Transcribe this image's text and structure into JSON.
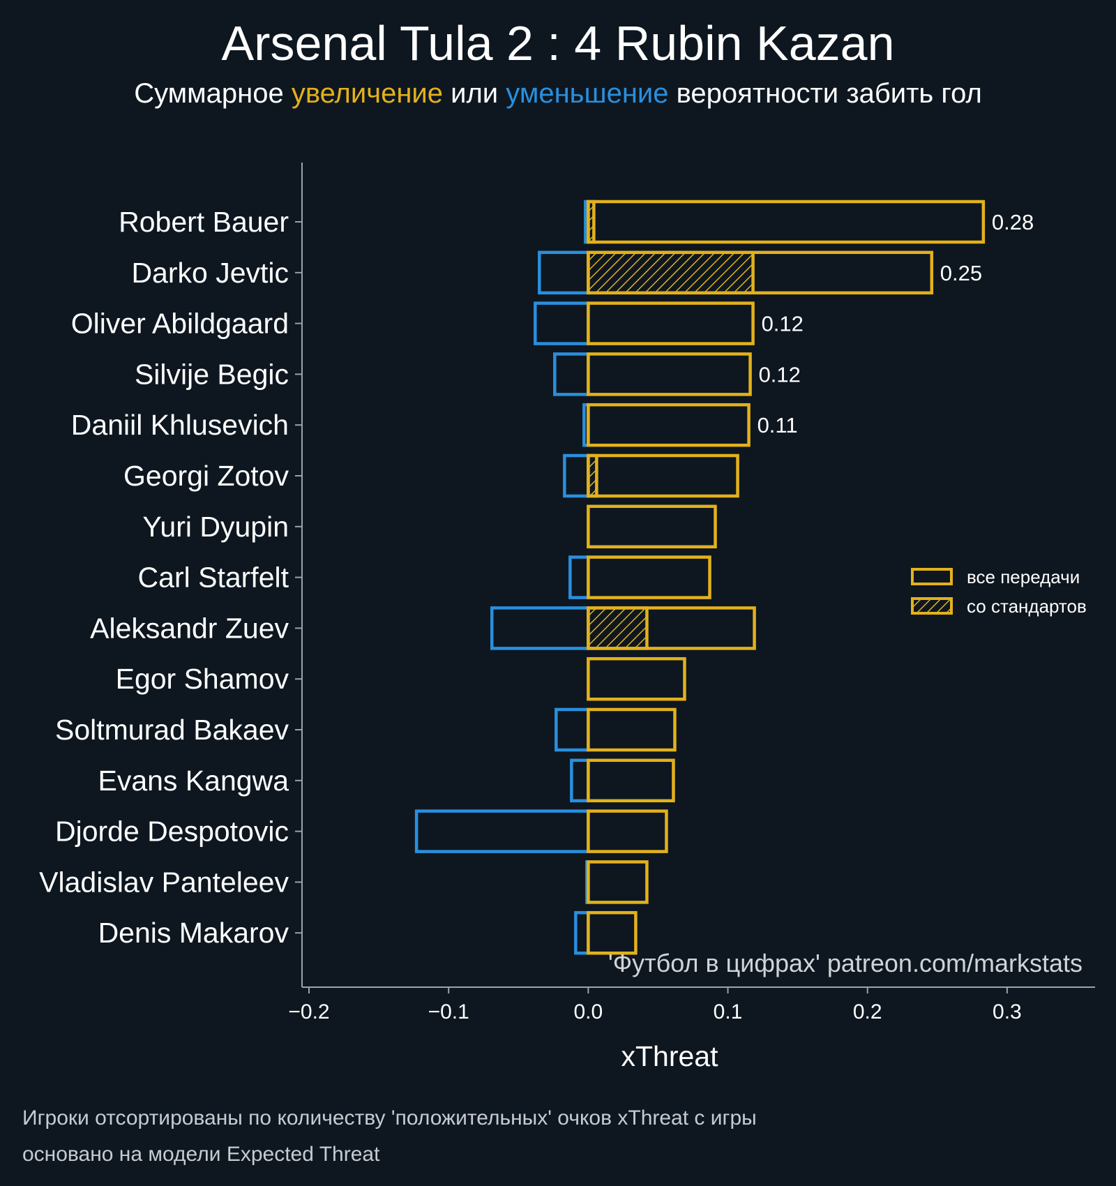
{
  "header": {
    "title": "Arsenal Tula 2 : 4 Rubin Kazan",
    "subtitle_pre": "Суммарное ",
    "subtitle_inc": "увеличение",
    "subtitle_mid": " или ",
    "subtitle_dec": "уменьшение",
    "subtitle_post": " вероятности забить гол"
  },
  "credit": "'Футбол в цифрах' patreon.com/markstats",
  "footnotes": [
    "Игроки отсортированы по количеству 'положительных' очков xThreat с игры",
    "основано на модели Expected Threat"
  ],
  "colors": {
    "background": "#0e1720",
    "increase": "#e3b11c",
    "decrease": "#2a8fde",
    "axis": "#9aa3ab"
  },
  "chart_data": {
    "type": "bar",
    "orientation": "horizontal",
    "xlabel": "xThreat",
    "xlim": [
      -0.205,
      0.363
    ],
    "xticks": [
      -0.2,
      -0.1,
      0.0,
      0.1,
      0.2,
      0.3
    ],
    "xtick_labels": [
      "−0.2",
      "−0.1",
      "0.0",
      "0.1",
      "0.2",
      "0.3"
    ],
    "legend": {
      "position": "right",
      "entries": [
        "все передачи",
        "со стандартов"
      ]
    },
    "categories": [
      "Robert Bauer",
      "Darko Jevtic",
      "Oliver Abildgaard",
      "Silvije Begic",
      "Daniil Khlusevich",
      "Georgi Zotov",
      "Yuri Dyupin",
      "Carl Starfelt",
      "Aleksandr Zuev",
      "Egor Shamov",
      "Soltmurad Bakaev",
      "Evans Kangwa",
      "Djorde Despotovic",
      "Vladislav Panteleev",
      "Denis Makarov"
    ],
    "series": [
      {
        "name": "все передачи (+)",
        "values": [
          0.283,
          0.246,
          0.118,
          0.116,
          0.115,
          0.107,
          0.091,
          0.087,
          0.119,
          0.069,
          0.062,
          0.061,
          0.056,
          0.042,
          0.034
        ]
      },
      {
        "name": "все передачи (−)",
        "values": [
          -0.002,
          -0.035,
          -0.038,
          -0.024,
          -0.003,
          -0.017,
          0.0,
          -0.013,
          -0.069,
          0.0,
          -0.023,
          -0.012,
          -0.123,
          -0.001,
          -0.009
        ]
      },
      {
        "name": "со стандартов",
        "values": [
          0.004,
          0.118,
          0.0,
          0.0,
          0.0,
          0.006,
          0.0,
          0.0,
          0.042,
          0.0,
          0.0,
          0.0,
          0.0,
          0.0,
          0.0
        ]
      }
    ],
    "value_labels": [
      "0.28",
      "0.25",
      "0.12",
      "0.12",
      "0.11",
      "",
      "",
      "",
      "",
      "",
      "",
      "",
      "",
      "",
      ""
    ]
  }
}
